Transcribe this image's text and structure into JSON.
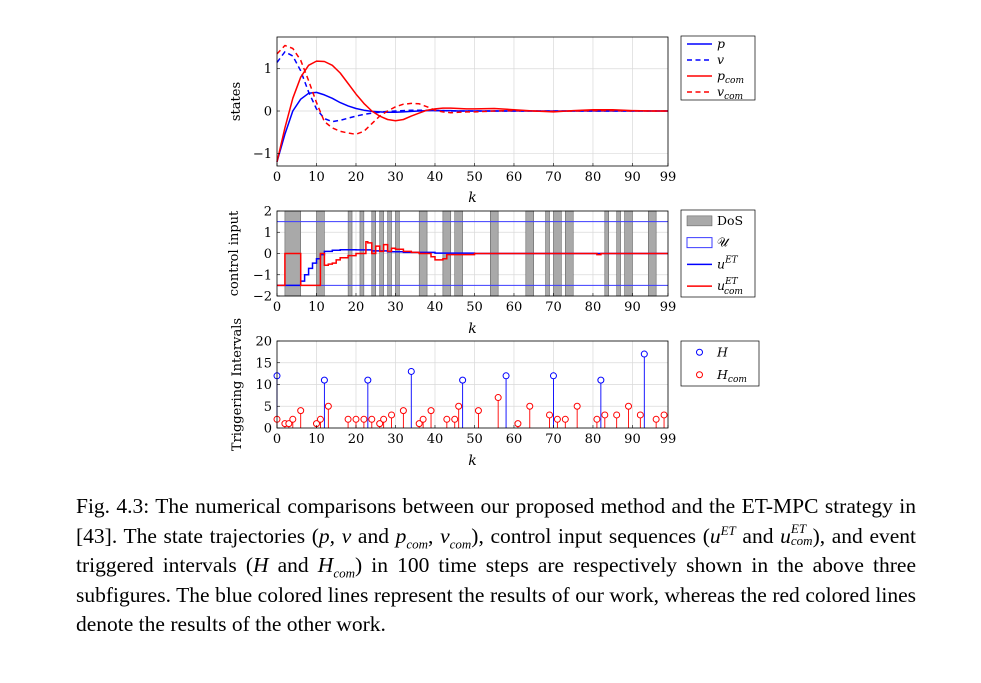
{
  "chart_data": [
    {
      "type": "line",
      "ylabel": "states",
      "xlabel": "k",
      "xlim": [
        0,
        99
      ],
      "ylim": [
        -1.3,
        1.75
      ],
      "xticks": [
        0,
        10,
        20,
        30,
        40,
        50,
        60,
        70,
        80,
        90,
        99
      ],
      "yticks": [
        -1,
        0,
        1
      ],
      "grid": true,
      "legend_position": "top-right outside",
      "x": [
        0,
        2,
        4,
        6,
        8,
        10,
        12,
        14,
        16,
        18,
        20,
        22,
        24,
        26,
        28,
        30,
        32,
        34,
        36,
        38,
        40,
        42,
        44,
        46,
        48,
        50,
        55,
        60,
        65,
        70,
        75,
        80,
        85,
        90,
        95,
        99
      ],
      "series": [
        {
          "name": "p",
          "label_html": "<tspan font-style='italic'>p</tspan>",
          "color": "#0000ff",
          "dash": false,
          "values": [
            -1.2,
            -0.55,
            0.0,
            0.28,
            0.42,
            0.44,
            0.38,
            0.3,
            0.2,
            0.12,
            0.06,
            0.02,
            -0.01,
            -0.02,
            -0.03,
            -0.03,
            -0.02,
            -0.01,
            0.0,
            0.01,
            0.01,
            0.01,
            0.01,
            0.0,
            0.0,
            0.0,
            0.0,
            0.0,
            0.0,
            0.0,
            0.0,
            0.0,
            0.0,
            0.0,
            0.0,
            0.0
          ]
        },
        {
          "name": "v",
          "label_html": "<tspan font-style='italic'>v</tspan>",
          "color": "#0000ff",
          "dash": true,
          "values": [
            1.15,
            1.4,
            1.3,
            0.95,
            0.45,
            0.05,
            -0.18,
            -0.25,
            -0.22,
            -0.17,
            -0.12,
            -0.08,
            -0.05,
            -0.03,
            -0.01,
            0.0,
            0.01,
            0.02,
            0.02,
            0.02,
            0.01,
            0.01,
            0.0,
            0.0,
            0.0,
            0.0,
            0.0,
            0.0,
            0.0,
            0.0,
            0.0,
            0.0,
            0.0,
            0.0,
            0.0,
            0.0
          ]
        },
        {
          "name": "p_com",
          "label_html": "<tspan font-style='italic'>p</tspan><tspan font-style='italic' font-size='9' dy='3'>com</tspan>",
          "color": "#ff0000",
          "dash": false,
          "values": [
            -1.2,
            -0.4,
            0.3,
            0.8,
            1.08,
            1.18,
            1.17,
            1.08,
            0.9,
            0.65,
            0.4,
            0.18,
            0.0,
            -0.12,
            -0.2,
            -0.23,
            -0.2,
            -0.12,
            -0.05,
            0.02,
            0.05,
            0.07,
            0.07,
            0.06,
            0.05,
            0.05,
            0.06,
            0.03,
            0.0,
            -0.02,
            0.01,
            0.03,
            0.03,
            0.01,
            0.0,
            0.0
          ]
        },
        {
          "name": "v_com",
          "label_html": "<tspan font-style='italic'>v</tspan><tspan font-style='italic' font-size='9' dy='3'>com</tspan>",
          "color": "#ff0000",
          "dash": true,
          "values": [
            1.35,
            1.55,
            1.48,
            1.2,
            0.72,
            0.2,
            -0.25,
            -0.4,
            -0.48,
            -0.52,
            -0.55,
            -0.48,
            -0.3,
            -0.12,
            0.0,
            0.1,
            0.16,
            0.18,
            0.17,
            0.1,
            0.02,
            -0.02,
            -0.04,
            -0.03,
            -0.02,
            -0.02,
            0.0,
            0.01,
            0.0,
            -0.01,
            0.0,
            0.01,
            0.01,
            0.0,
            0.0,
            0.0
          ]
        }
      ]
    },
    {
      "type": "step",
      "ylabel": "control input",
      "xlabel": "k",
      "xlim": [
        0,
        99
      ],
      "ylim": [
        -2,
        2
      ],
      "xticks": [
        0,
        10,
        20,
        30,
        40,
        50,
        60,
        70,
        80,
        90,
        99
      ],
      "yticks": [
        -2,
        -1,
        0,
        1,
        2
      ],
      "grid": true,
      "legend_position": "top-right outside",
      "dos_intervals": [
        [
          2,
          6
        ],
        [
          10,
          12
        ],
        [
          18,
          19
        ],
        [
          21,
          22
        ],
        [
          24,
          25
        ],
        [
          26,
          27
        ],
        [
          28,
          29
        ],
        [
          30,
          31
        ],
        [
          36,
          38
        ],
        [
          42,
          44
        ],
        [
          45,
          47
        ],
        [
          54,
          56
        ],
        [
          63,
          65
        ],
        [
          68,
          69
        ],
        [
          70,
          72
        ],
        [
          73,
          75
        ],
        [
          83,
          84
        ],
        [
          86,
          87
        ],
        [
          88,
          90
        ],
        [
          94,
          96
        ]
      ],
      "bound_U": [
        -1.5,
        1.5
      ],
      "series": [
        {
          "name": "u^ET",
          "label_html": "<tspan font-style='italic'>u</tspan><tspan font-style='italic' font-size='9' dy='-6'>ET</tspan>",
          "color": "#0000ff",
          "x": [
            0,
            6,
            7,
            8,
            9,
            10,
            11,
            12,
            14,
            16,
            20,
            24,
            28,
            32,
            40,
            50,
            60,
            70,
            80,
            90,
            99
          ],
          "values": [
            -1.5,
            -1.3,
            -1.0,
            -0.7,
            -0.45,
            -0.25,
            -0.05,
            0.1,
            0.15,
            0.18,
            0.17,
            0.12,
            0.08,
            0.05,
            0.02,
            0.0,
            0.0,
            0.0,
            0.0,
            0.0,
            0.0
          ]
        },
        {
          "name": "u^ET_com",
          "label_html": "<tspan font-style='italic'>u</tspan><tspan font-style='italic' font-size='9' dy='-6'>ET</tspan><tspan font-style='italic' font-size='9' dx='-13' dy='10'>com</tspan>",
          "color": "#ff0000",
          "x": [
            0,
            2,
            6,
            11,
            12,
            13,
            14,
            15,
            16,
            18,
            20,
            22,
            22.5,
            23,
            24,
            25,
            26,
            27,
            28,
            29,
            30,
            32,
            34,
            36,
            39,
            40,
            42,
            43,
            50,
            60,
            70,
            80,
            81,
            82,
            90,
            99
          ],
          "values": [
            -1.5,
            0.0,
            -1.5,
            0.0,
            -0.55,
            -0.5,
            -0.45,
            -0.3,
            -0.2,
            -0.1,
            0.0,
            0.0,
            0.55,
            0.5,
            0.0,
            0.35,
            0.1,
            0.42,
            0.1,
            0.25,
            0.2,
            0.1,
            0.05,
            0.0,
            -0.15,
            -0.3,
            -0.25,
            -0.05,
            0.0,
            0.0,
            0.0,
            0.0,
            -0.05,
            0.0,
            0.0,
            0.0
          ]
        }
      ]
    },
    {
      "type": "stem",
      "ylabel": "Triggering Intervals",
      "xlabel": "k",
      "xlim": [
        0,
        99
      ],
      "ylim": [
        0,
        20
      ],
      "xticks": [
        0,
        10,
        20,
        30,
        40,
        50,
        60,
        70,
        80,
        90,
        99
      ],
      "yticks": [
        0,
        5,
        10,
        15,
        20
      ],
      "grid": true,
      "legend_position": "top-right outside",
      "series": [
        {
          "name": "H",
          "label_html": "<tspan font-style='italic'>H</tspan>",
          "color": "#0000ff",
          "x": [
            0,
            12,
            23,
            34,
            47,
            58,
            70,
            82,
            93
          ],
          "values": [
            12,
            11,
            11,
            13,
            11,
            12,
            12,
            11,
            17
          ]
        },
        {
          "name": "H_com",
          "label_html": "<tspan font-style='italic'>H</tspan><tspan font-style='italic' font-size='9' dy='3'>com</tspan>",
          "color": "#ff0000",
          "x": [
            0,
            2,
            3,
            4,
            6,
            10,
            11,
            13,
            18,
            20,
            22,
            24,
            26,
            27,
            29,
            32,
            36,
            37,
            39,
            43,
            45,
            46,
            51,
            56,
            61,
            64,
            69,
            71,
            73,
            76,
            81,
            83,
            86,
            89,
            92,
            96,
            98
          ],
          "values": [
            2,
            1,
            1,
            2,
            4,
            1,
            2,
            5,
            2,
            2,
            2,
            2,
            1,
            2,
            3,
            4,
            1,
            2,
            4,
            2,
            2,
            5,
            4,
            7,
            1,
            5,
            3,
            2,
            2,
            5,
            2,
            3,
            3,
            5,
            3,
            2,
            3
          ]
        }
      ]
    }
  ],
  "caption": {
    "p1": "Fig. 4.3: The numerical comparisons between our proposed method and the ET-MPC strategy in [43]. The state trajectories (",
    "v1": "p, v",
    "t_and1": " and ",
    "v2a": "p",
    "s2a": "com",
    "t_comma": ", ",
    "v2b": "v",
    "s2b": "com",
    "p2": "), control input sequences (",
    "v3": "u",
    "sup3": "ET",
    "t_and2": " and ",
    "v4": "u",
    "sup4": "ET",
    "sub4": "com",
    "p3": "), and event triggered intervals (",
    "v5": "H",
    "t_and3": " and ",
    "v6": "H",
    "s6": "com",
    "p4": ") in 100 time steps are respectively shown in the above three subfigures. The blue colored lines represent the results of our work, whereas the red colored lines denote the results of the other work."
  },
  "legend_labels": {
    "dos": "DoS",
    "U": "𝒰"
  }
}
